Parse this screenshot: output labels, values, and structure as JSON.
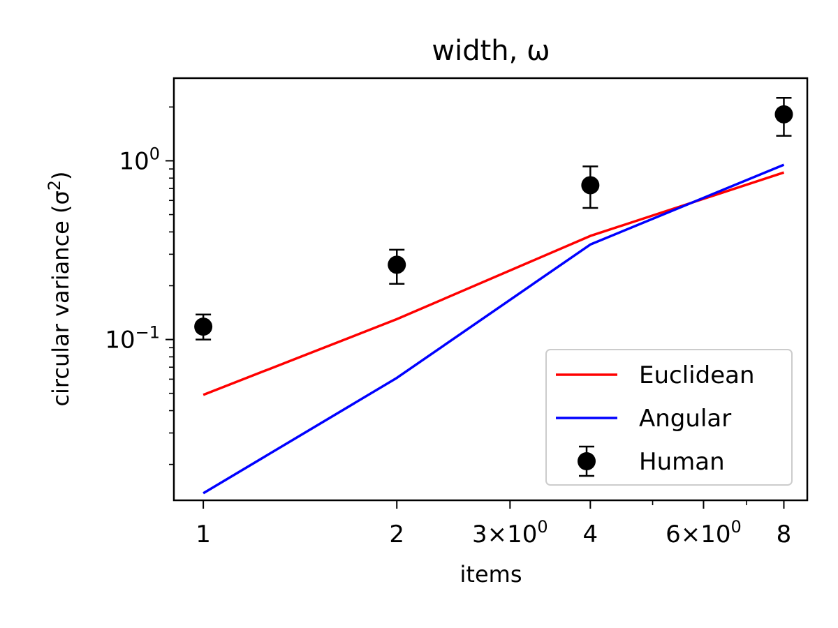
{
  "chart_data": {
    "type": "line",
    "title": "width, ω",
    "xlabel": "items",
    "ylabel": "circular variance (σ²)",
    "xscale": "log",
    "yscale": "log",
    "xlim": [
      0.9,
      8.7
    ],
    "ylim": [
      0.0126,
      2.9
    ],
    "grid": false,
    "legend_position": "bottom-right",
    "x_ticks": [
      {
        "value": 1,
        "label": "1"
      },
      {
        "value": 2,
        "label": "2"
      },
      {
        "value": 3,
        "label": "3×10",
        "sup": "0"
      },
      {
        "value": 4,
        "label": "4"
      },
      {
        "value": 6,
        "label": "6×10",
        "sup": "0"
      },
      {
        "value": 8,
        "label": "8"
      }
    ],
    "x_minor_ticks": [
      5,
      7
    ],
    "y_ticks": [
      {
        "value": 0.1,
        "label": "10",
        "sup": "−1"
      },
      {
        "value": 1,
        "label": "10",
        "sup": "0"
      }
    ],
    "y_minor_ticks": [
      0.02,
      0.03,
      0.04,
      0.05,
      0.06,
      0.07,
      0.08,
      0.09,
      0.2,
      0.3,
      0.4,
      0.5,
      0.6,
      0.7,
      0.8,
      0.9,
      2
    ],
    "series": [
      {
        "name": "Euclidean",
        "kind": "line",
        "color": "#ff0000",
        "x": [
          1,
          2,
          4,
          8
        ],
        "y": [
          0.049,
          0.13,
          0.38,
          0.86
        ]
      },
      {
        "name": "Angular",
        "kind": "line",
        "color": "#0000ff",
        "x": [
          1,
          2,
          4,
          8
        ],
        "y": [
          0.0138,
          0.061,
          0.34,
          0.95
        ]
      },
      {
        "name": "Human",
        "kind": "errorbar",
        "color": "#000000",
        "x": [
          1,
          2,
          4,
          8
        ],
        "y": [
          0.118,
          0.262,
          0.73,
          1.82
        ],
        "yerr_low": [
          0.1,
          0.205,
          0.545,
          1.38
        ],
        "yerr_high": [
          0.138,
          0.318,
          0.93,
          2.25
        ]
      }
    ]
  }
}
